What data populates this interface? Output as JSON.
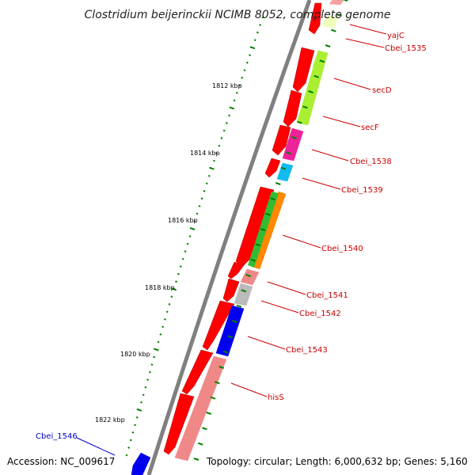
{
  "title": "Clostridium beijerinckii NCIMB 8052, complete genome",
  "footer": {
    "accession": "Accession: NC_009617",
    "topology": "Topology: circular; Length: 6,000,632 bp; Genes: 5,160"
  },
  "colors": {
    "backbone": "#808080",
    "cds": "#ff0000",
    "tick": "#008000",
    "label_red": "#cc0000",
    "label_blue": "#0000cc"
  },
  "tick_labels": [
    "1812 kbp",
    "1814 kbp",
    "1816 kbp",
    "1818 kbp",
    "1820 kbp",
    "1822 kbp"
  ],
  "genes": [
    {
      "name": "yajC",
      "color": "#eeffbb",
      "label_color": "#cc0000"
    },
    {
      "name": "Cbei_1535",
      "color": "#f5a0a0",
      "label_color": "#cc0000"
    },
    {
      "name": "secD",
      "color": "#aaee33",
      "label_color": "#cc0000"
    },
    {
      "name": "secF",
      "color": "#aaee33",
      "label_color": "#cc0000"
    },
    {
      "name": "Cbei_1538",
      "color": "#ee2299",
      "label_color": "#cc0000"
    },
    {
      "name": "Cbei_1539",
      "color": "#11bbee",
      "label_color": "#cc0000"
    },
    {
      "name": "Cbei_1540",
      "color": "#ff8800",
      "label_color": "#cc0000"
    },
    {
      "name": "Cbei_1541",
      "color": "#f08888",
      "label_color": "#cc0000"
    },
    {
      "name": "Cbei_1542",
      "color": "#bbbbbb",
      "label_color": "#cc0000"
    },
    {
      "name": "Cbei_1543",
      "color": "#0000ee",
      "label_color": "#cc0000"
    },
    {
      "name": "hisS",
      "color": "#f08888",
      "label_color": "#cc0000"
    },
    {
      "name": "Cbei_1546",
      "color": "#0000ee",
      "label_color": "#0000cc"
    }
  ]
}
